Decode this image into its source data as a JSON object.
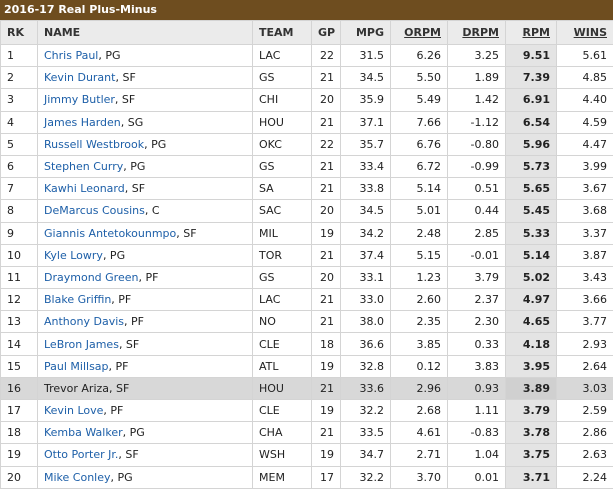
{
  "header": {
    "title": "2016-17 Real Plus-Minus"
  },
  "table": {
    "columns": [
      "RK",
      "NAME",
      "TEAM",
      "GP",
      "MPG",
      "ORPM",
      "DRPM",
      "RPM",
      "WINS"
    ],
    "sortable": [
      false,
      false,
      false,
      false,
      false,
      true,
      true,
      true,
      true
    ],
    "rows": [
      {
        "rk": "1",
        "name": "Chris Paul",
        "pos": ", PG",
        "team": "LAC",
        "gp": "22",
        "mpg": "31.5",
        "orpm": "6.26",
        "drpm": "3.25",
        "rpm": "9.51",
        "wins": "5.61"
      },
      {
        "rk": "2",
        "name": "Kevin Durant",
        "pos": ", SF",
        "team": "GS",
        "gp": "21",
        "mpg": "34.5",
        "orpm": "5.50",
        "drpm": "1.89",
        "rpm": "7.39",
        "wins": "4.85"
      },
      {
        "rk": "3",
        "name": "Jimmy Butler",
        "pos": ", SF",
        "team": "CHI",
        "gp": "20",
        "mpg": "35.9",
        "orpm": "5.49",
        "drpm": "1.42",
        "rpm": "6.91",
        "wins": "4.40"
      },
      {
        "rk": "4",
        "name": "James Harden",
        "pos": ", SG",
        "team": "HOU",
        "gp": "21",
        "mpg": "37.1",
        "orpm": "7.66",
        "drpm": "-1.12",
        "rpm": "6.54",
        "wins": "4.59"
      },
      {
        "rk": "5",
        "name": "Russell Westbrook",
        "pos": ", PG",
        "team": "OKC",
        "gp": "22",
        "mpg": "35.7",
        "orpm": "6.76",
        "drpm": "-0.80",
        "rpm": "5.96",
        "wins": "4.47"
      },
      {
        "rk": "6",
        "name": "Stephen Curry",
        "pos": ", PG",
        "team": "GS",
        "gp": "21",
        "mpg": "33.4",
        "orpm": "6.72",
        "drpm": "-0.99",
        "rpm": "5.73",
        "wins": "3.99"
      },
      {
        "rk": "7",
        "name": "Kawhi Leonard",
        "pos": ", SF",
        "team": "SA",
        "gp": "21",
        "mpg": "33.8",
        "orpm": "5.14",
        "drpm": "0.51",
        "rpm": "5.65",
        "wins": "3.67"
      },
      {
        "rk": "8",
        "name": "DeMarcus Cousins",
        "pos": ", C",
        "team": "SAC",
        "gp": "20",
        "mpg": "34.5",
        "orpm": "5.01",
        "drpm": "0.44",
        "rpm": "5.45",
        "wins": "3.68"
      },
      {
        "rk": "9",
        "name": "Giannis Antetokounmpo",
        "pos": ", SF",
        "team": "MIL",
        "gp": "19",
        "mpg": "34.2",
        "orpm": "2.48",
        "drpm": "2.85",
        "rpm": "5.33",
        "wins": "3.37"
      },
      {
        "rk": "10",
        "name": "Kyle Lowry",
        "pos": ", PG",
        "team": "TOR",
        "gp": "21",
        "mpg": "37.4",
        "orpm": "5.15",
        "drpm": "-0.01",
        "rpm": "5.14",
        "wins": "3.87"
      },
      {
        "rk": "11",
        "name": "Draymond Green",
        "pos": ", PF",
        "team": "GS",
        "gp": "20",
        "mpg": "33.1",
        "orpm": "1.23",
        "drpm": "3.79",
        "rpm": "5.02",
        "wins": "3.43"
      },
      {
        "rk": "12",
        "name": "Blake Griffin",
        "pos": ", PF",
        "team": "LAC",
        "gp": "21",
        "mpg": "33.0",
        "orpm": "2.60",
        "drpm": "2.37",
        "rpm": "4.97",
        "wins": "3.66"
      },
      {
        "rk": "13",
        "name": "Anthony Davis",
        "pos": ", PF",
        "team": "NO",
        "gp": "21",
        "mpg": "38.0",
        "orpm": "2.35",
        "drpm": "2.30",
        "rpm": "4.65",
        "wins": "3.77"
      },
      {
        "rk": "14",
        "name": "LeBron James",
        "pos": ", SF",
        "team": "CLE",
        "gp": "18",
        "mpg": "36.6",
        "orpm": "3.85",
        "drpm": "0.33",
        "rpm": "4.18",
        "wins": "2.93"
      },
      {
        "rk": "15",
        "name": "Paul Millsap",
        "pos": ", PF",
        "team": "ATL",
        "gp": "19",
        "mpg": "32.8",
        "orpm": "0.12",
        "drpm": "3.83",
        "rpm": "3.95",
        "wins": "2.64"
      },
      {
        "rk": "16",
        "name": "Trevor Ariza",
        "pos": ", SF",
        "team": "HOU",
        "gp": "21",
        "mpg": "33.6",
        "orpm": "2.96",
        "drpm": "0.93",
        "rpm": "3.89",
        "wins": "3.03",
        "highlight": true
      },
      {
        "rk": "17",
        "name": "Kevin Love",
        "pos": ", PF",
        "team": "CLE",
        "gp": "19",
        "mpg": "32.2",
        "orpm": "2.68",
        "drpm": "1.11",
        "rpm": "3.79",
        "wins": "2.59"
      },
      {
        "rk": "18",
        "name": "Kemba Walker",
        "pos": ", PG",
        "team": "CHA",
        "gp": "21",
        "mpg": "33.5",
        "orpm": "4.61",
        "drpm": "-0.83",
        "rpm": "3.78",
        "wins": "2.86"
      },
      {
        "rk": "19",
        "name": "Otto Porter Jr.",
        "pos": ", SF",
        "team": "WSH",
        "gp": "19",
        "mpg": "34.7",
        "orpm": "2.71",
        "drpm": "1.04",
        "rpm": "3.75",
        "wins": "2.63"
      },
      {
        "rk": "20",
        "name": "Mike Conley",
        "pos": ", PG",
        "team": "MEM",
        "gp": "17",
        "mpg": "32.2",
        "orpm": "3.70",
        "drpm": "0.01",
        "rpm": "3.71",
        "wins": "2.24"
      }
    ]
  }
}
